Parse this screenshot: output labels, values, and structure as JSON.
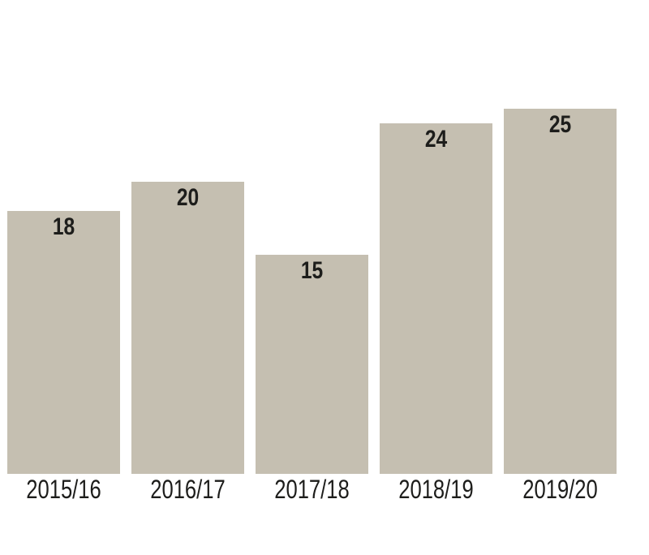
{
  "chart_data": {
    "type": "bar",
    "title": "",
    "xlabel": "",
    "ylabel": "",
    "categories": [
      "2015/16",
      "2016/17",
      "2017/18",
      "2018/19",
      "2019/20"
    ],
    "values": [
      18,
      20,
      15,
      24,
      25
    ],
    "ylim": [
      0,
      25
    ],
    "grid": false,
    "legend": "none",
    "axes_visible": false,
    "value_labels_shown": true,
    "bar_color": "#c5bfb1",
    "value_label_color": "#1d1d1b",
    "category_label_color": "#1d1d1b",
    "background_color": "#ffffff"
  }
}
